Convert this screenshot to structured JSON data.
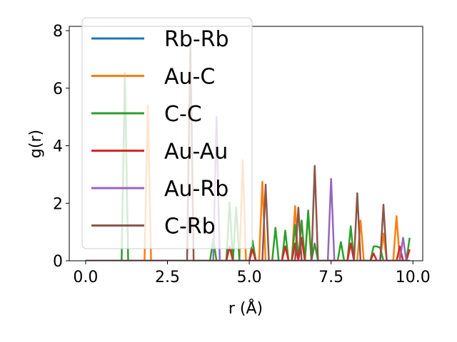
{
  "chart_data": {
    "type": "line",
    "title": "",
    "xlabel": "r (Å)",
    "ylabel": "g(r)",
    "xlim": [
      -0.5,
      10.3
    ],
    "ylim": [
      0,
      8.15
    ],
    "xticks": [
      0.0,
      2.5,
      5.0,
      7.5,
      10.0
    ],
    "xtick_labels": [
      "0.0",
      "2.5",
      "5.0",
      "7.5",
      "10.0"
    ],
    "yticks": [
      0,
      2,
      4,
      6,
      8
    ],
    "ytick_labels": [
      "0",
      "2",
      "4",
      "6",
      "8"
    ],
    "grid": false,
    "legend_position": "upper-left",
    "x": [
      0.0,
      0.1,
      0.2,
      0.3,
      0.4,
      0.5,
      0.6,
      0.7,
      0.8,
      0.9,
      1.0,
      1.1,
      1.2,
      1.3,
      1.4,
      1.5,
      1.6,
      1.7,
      1.8,
      1.9,
      2.0,
      2.1,
      2.2,
      2.3,
      2.4,
      2.5,
      2.6,
      2.7,
      2.8,
      2.9,
      3.0,
      3.1,
      3.2,
      3.3,
      3.4,
      3.5,
      3.6,
      3.7,
      3.8,
      3.9,
      4.0,
      4.1,
      4.2,
      4.3,
      4.4,
      4.5,
      4.6,
      4.7,
      4.8,
      4.9,
      5.0,
      5.1,
      5.2,
      5.3,
      5.4,
      5.5,
      5.6,
      5.7,
      5.8,
      5.9,
      6.0,
      6.1,
      6.2,
      6.3,
      6.4,
      6.5,
      6.6,
      6.7,
      6.8,
      6.9,
      7.0,
      7.1,
      7.2,
      7.3,
      7.4,
      7.5,
      7.6,
      7.7,
      7.8,
      7.9,
      8.0,
      8.1,
      8.2,
      8.3,
      8.4,
      8.5,
      8.6,
      8.7,
      8.8,
      8.9,
      9.0,
      9.1,
      9.2,
      9.3,
      9.4,
      9.5,
      9.6,
      9.7,
      9.8,
      9.9
    ],
    "series": [
      {
        "name": "Rb-Rb",
        "color": "#1f77b4",
        "values": [
          0,
          0,
          0,
          0,
          0,
          0,
          0,
          0,
          0,
          0,
          0,
          0,
          0,
          0,
          0,
          0,
          0,
          0,
          0,
          0,
          0,
          0,
          0,
          0,
          0,
          0,
          0,
          0,
          0,
          0,
          0,
          0,
          0,
          0,
          0,
          0,
          0,
          0,
          0,
          0,
          0,
          0,
          0,
          0,
          0,
          0,
          0,
          0,
          0,
          0,
          0,
          0,
          0,
          0,
          0,
          0,
          0,
          0,
          0,
          0,
          0,
          0,
          0,
          0,
          0,
          0,
          0,
          0,
          0,
          0,
          0,
          0,
          0,
          0,
          0,
          0,
          0,
          0,
          0,
          0,
          0,
          0,
          0,
          0,
          0,
          0,
          0,
          0,
          0,
          0,
          0,
          0,
          0,
          0,
          0,
          0,
          0,
          0,
          0,
          0
        ]
      },
      {
        "name": "Au-C",
        "color": "#ff7f0e",
        "values": [
          0,
          0,
          0,
          0,
          0,
          0,
          0,
          0,
          0,
          0,
          0,
          0,
          0,
          0,
          0,
          0,
          0,
          0,
          0,
          5.4,
          0,
          0,
          0,
          0,
          0,
          0,
          0,
          0,
          0,
          0,
          0,
          0,
          0,
          0,
          0,
          0,
          0,
          0,
          0,
          0,
          0,
          0,
          0,
          0,
          0,
          0,
          0,
          0,
          3.5,
          0,
          0,
          0,
          0,
          0,
          2.75,
          0,
          0,
          0,
          0,
          0,
          0,
          0,
          0,
          0,
          1.9,
          0,
          0,
          0,
          1.6,
          0,
          0,
          0,
          0,
          0,
          0,
          0,
          0,
          0,
          0,
          0,
          0,
          0,
          0,
          0,
          1.4,
          0,
          0,
          0,
          0,
          0,
          0,
          0.95,
          0,
          0,
          0,
          1.55,
          0,
          0,
          0,
          0
        ]
      },
      {
        "name": "C-C",
        "color": "#2ca02c",
        "values": [
          0,
          0,
          0,
          0,
          0,
          0,
          0,
          0,
          0,
          0,
          0,
          0,
          6.55,
          0,
          0,
          0,
          0,
          0,
          0,
          0,
          0,
          0,
          0,
          0,
          0,
          0,
          0,
          0,
          0,
          0,
          0,
          0,
          0,
          0,
          0,
          0,
          0,
          0,
          0,
          0.75,
          0,
          0,
          0,
          0,
          2.05,
          0,
          1.85,
          0,
          0,
          0,
          0,
          0.7,
          0,
          0,
          0,
          0,
          0,
          0,
          1.15,
          0,
          0,
          1.05,
          0,
          0,
          1.25,
          0,
          1.4,
          0,
          1.75,
          0,
          0.6,
          0,
          0,
          0,
          0,
          0,
          0,
          0,
          0.65,
          0,
          0,
          1.2,
          0,
          0,
          0,
          0,
          0,
          0,
          0.5,
          0.5,
          0.45,
          0,
          0,
          0,
          0,
          0,
          0,
          0,
          0,
          0.8
        ]
      },
      {
        "name": "Au-Au",
        "color": "#d62728",
        "values": [
          0,
          0,
          0,
          0,
          0,
          0,
          0,
          0,
          0,
          0,
          0,
          0,
          0,
          0,
          0,
          0,
          0,
          0,
          0,
          0,
          0,
          0,
          0,
          0,
          0,
          0,
          0,
          0,
          0,
          0,
          0,
          0,
          0,
          0,
          0,
          0,
          0,
          0,
          0,
          0,
          0,
          0,
          0,
          0,
          0.5,
          0,
          0,
          0,
          0,
          0,
          0,
          0.4,
          0,
          0,
          0,
          0,
          0,
          0,
          0,
          0,
          0,
          0.5,
          0,
          0,
          0.6,
          0,
          0.8,
          0,
          0,
          0,
          0,
          0,
          0,
          0,
          0,
          0,
          0,
          0,
          0,
          0,
          0,
          0.6,
          0,
          0,
          0,
          0,
          0,
          0,
          0.25,
          0,
          0,
          0,
          0,
          0,
          0,
          0,
          0.5,
          0,
          0,
          0.4
        ]
      },
      {
        "name": "Au-Rb",
        "color": "#9467bd",
        "values": [
          0,
          0,
          0,
          0,
          0,
          0,
          0,
          0,
          0,
          0,
          0,
          0,
          0,
          0,
          0,
          0,
          0,
          0,
          0,
          0,
          0,
          0,
          0,
          0,
          0,
          0,
          0,
          0,
          0,
          0,
          0,
          0,
          0,
          0,
          0,
          0,
          0,
          0,
          0,
          0,
          5.0,
          0,
          0,
          0,
          0,
          0,
          0,
          0,
          0,
          0,
          0,
          0,
          0,
          0,
          0,
          0,
          0,
          0,
          0,
          0,
          0,
          0,
          0,
          0,
          0,
          0,
          0,
          0,
          0,
          0,
          0,
          0,
          0,
          0,
          0,
          2.85,
          0,
          0,
          0,
          0,
          0,
          0,
          0,
          0,
          0,
          0,
          0,
          0,
          0,
          0,
          0,
          0,
          0,
          0,
          0,
          0,
          0,
          0.8,
          0,
          0
        ]
      },
      {
        "name": "C-Rb",
        "color": "#8c564b",
        "values": [
          0,
          0,
          0,
          0,
          0,
          0,
          0,
          0,
          0,
          0,
          0,
          0,
          0,
          0,
          0,
          0,
          0,
          0,
          0,
          0,
          0,
          0,
          0,
          0,
          0,
          0,
          0,
          0,
          0,
          0,
          0,
          0,
          7.6,
          0,
          0,
          0,
          0,
          0,
          0,
          0,
          0,
          0,
          0,
          0,
          0,
          0,
          0,
          0,
          0,
          0,
          0,
          0,
          0,
          0,
          0,
          2.65,
          0,
          0,
          0,
          0,
          0,
          0,
          0,
          0,
          0,
          1.85,
          0,
          0,
          0,
          0,
          3.3,
          0,
          0,
          0,
          0,
          0,
          0,
          0,
          0,
          0,
          0,
          0,
          0,
          2.35,
          0,
          0,
          0,
          0,
          0,
          0,
          0,
          1.95,
          0,
          0,
          0,
          0,
          0,
          0,
          0,
          0
        ]
      }
    ]
  }
}
